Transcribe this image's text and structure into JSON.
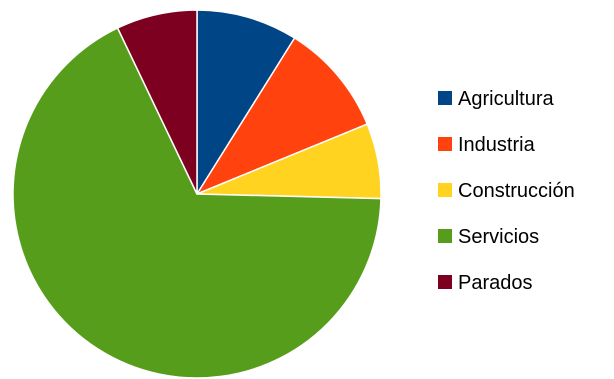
{
  "chart_data": {
    "type": "pie",
    "title": "",
    "start_angle_deg": 0,
    "direction": "clockwise",
    "legend_position": "right",
    "slices": [
      {
        "label": "Agricultura",
        "value": 8.9,
        "color": "#004586"
      },
      {
        "label": "Industria",
        "value": 9.9,
        "color": "#ff420e"
      },
      {
        "label": "Construcción",
        "value": 6.6,
        "color": "#ffd320"
      },
      {
        "label": "Servicios",
        "value": 67.5,
        "color": "#579d1c"
      },
      {
        "label": "Parados",
        "value": 7.1,
        "color": "#7e0021"
      }
    ]
  }
}
